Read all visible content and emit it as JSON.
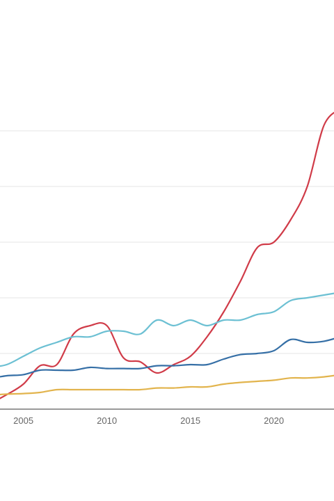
{
  "chart_data": {
    "type": "line",
    "title": "",
    "xlabel": "",
    "ylabel": "",
    "xlim": [
      2003.6,
      2023.6
    ],
    "ylim": [
      0,
      7
    ],
    "grid": true,
    "x_ticks": [
      2005,
      2010,
      2015,
      2020
    ],
    "x_tick_labels": [
      "2005",
      "2010",
      "2015",
      "2020"
    ],
    "y_gridlines": [
      1,
      2,
      3,
      4,
      5
    ],
    "x": [
      2003,
      2004,
      2005,
      2006,
      2007,
      2008,
      2009,
      2010,
      2011,
      2012,
      2013,
      2014,
      2015,
      2016,
      2017,
      2018,
      2019,
      2020,
      2021,
      2022,
      2023,
      2024
    ],
    "series": [
      {
        "color": "#d03b48",
        "values": [
          0.1,
          0.26,
          0.45,
          0.78,
          0.8,
          1.35,
          1.5,
          1.5,
          0.92,
          0.85,
          0.65,
          0.8,
          0.95,
          1.3,
          1.75,
          2.3,
          2.9,
          3.0,
          3.4,
          4.0,
          5.1,
          5.4
        ]
      },
      {
        "color": "#6cc0d3",
        "values": [
          0.75,
          0.8,
          0.95,
          1.1,
          1.2,
          1.3,
          1.3,
          1.4,
          1.4,
          1.35,
          1.6,
          1.5,
          1.6,
          1.5,
          1.6,
          1.6,
          1.7,
          1.75,
          1.95,
          2.0,
          2.05,
          2.1
        ]
      },
      {
        "color": "#356fa6",
        "values": [
          0.55,
          0.6,
          0.62,
          0.7,
          0.7,
          0.7,
          0.75,
          0.73,
          0.73,
          0.73,
          0.78,
          0.78,
          0.8,
          0.8,
          0.9,
          0.98,
          1.0,
          1.05,
          1.25,
          1.2,
          1.22,
          1.3
        ]
      },
      {
        "color": "#e2b44d",
        "values": [
          0.25,
          0.27,
          0.28,
          0.3,
          0.35,
          0.35,
          0.35,
          0.35,
          0.35,
          0.35,
          0.38,
          0.38,
          0.4,
          0.4,
          0.45,
          0.48,
          0.5,
          0.52,
          0.56,
          0.56,
          0.58,
          0.62
        ]
      }
    ]
  }
}
